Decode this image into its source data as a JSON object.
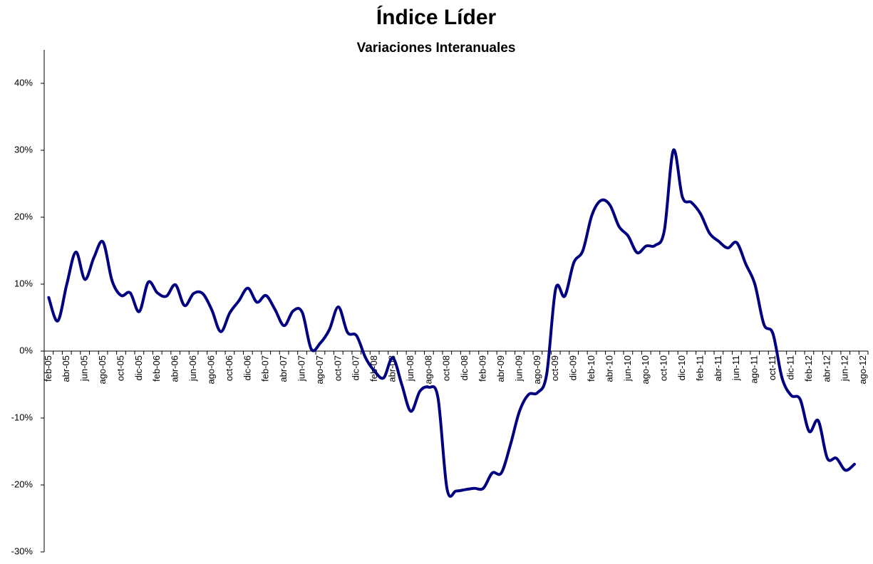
{
  "chart_data": {
    "type": "line",
    "title": "Índice Líder",
    "subtitle": "Variaciones Interanuales",
    "categories": [
      "feb-05",
      null,
      "abr-05",
      null,
      "jun-05",
      null,
      "ago-05",
      null,
      "oct-05",
      null,
      "dic-05",
      null,
      "feb-06",
      null,
      "abr-06",
      null,
      "jun-06",
      null,
      "ago-06",
      null,
      "oct-06",
      null,
      "dic-06",
      null,
      "feb-07",
      null,
      "abr-07",
      null,
      "jun-07",
      null,
      "ago-07",
      null,
      "oct-07",
      null,
      "dic-07",
      null,
      "feb-08",
      null,
      "abr-08",
      null,
      "jun-08",
      null,
      "ago-08",
      null,
      "oct-08",
      null,
      "dic-08",
      null,
      "feb-09",
      null,
      "abr-09",
      null,
      "jun-09",
      null,
      "ago-09",
      null,
      "oct-09",
      null,
      "dic-09",
      null,
      "feb-10",
      null,
      "abr-10",
      null,
      "jun-10",
      null,
      "ago-10",
      null,
      "oct-10",
      null,
      "dic-10",
      null,
      "feb-11",
      null,
      "abr-11",
      null,
      "jun-11",
      null,
      "ago-11",
      null,
      "oct-11",
      null,
      "dic-11",
      null,
      "feb-12",
      null,
      "abr-12",
      null,
      "jun-12",
      null,
      "ago-12"
    ],
    "series": [
      {
        "color": "#000080",
        "values": [
          8,
          4.5,
          10,
          14.8,
          10.7,
          14,
          16.3,
          10.5,
          8.3,
          8.7,
          5.9,
          10.3,
          8.7,
          8.2,
          9.9,
          6.8,
          8.6,
          8.6,
          6.2,
          2.9,
          5.7,
          7.5,
          9.4,
          7.3,
          8.3,
          6.2,
          3.8,
          6,
          5.8,
          0.3,
          1.2,
          3.2,
          6.6,
          2.8,
          2.3,
          -1,
          -3,
          -4,
          -1,
          -5,
          -9,
          -6,
          -5.4,
          -7,
          -20.6,
          -20.9,
          -20.7,
          -20.5,
          -20.5,
          -18.2,
          -18.2,
          -14,
          -9,
          -6.5,
          -6.2,
          -3.5,
          9.3,
          8.2,
          13.2,
          15,
          20.3,
          22.5,
          21.8,
          18.6,
          17.2,
          14.7,
          15.7,
          15.8,
          18,
          30,
          23,
          22.2,
          20.5,
          17.6,
          16.4,
          15.4,
          16.2,
          13,
          10,
          4,
          2.6,
          -4,
          -6.6,
          -7.2,
          -12,
          -10.4,
          -16,
          -16,
          -17.8,
          -16.9,
          null
        ]
      }
    ],
    "ylim": [
      -30,
      45
    ],
    "yticks": [
      {
        "value": -30,
        "label": "-30%"
      },
      {
        "value": -20,
        "label": "-20%"
      },
      {
        "value": -10,
        "label": "-10%"
      },
      {
        "value": 0,
        "label": "0%"
      },
      {
        "value": 10,
        "label": "10%"
      },
      {
        "value": 20,
        "label": "20%"
      },
      {
        "value": 30,
        "label": "30%"
      },
      {
        "value": 40,
        "label": "40%"
      }
    ],
    "grid": false
  }
}
